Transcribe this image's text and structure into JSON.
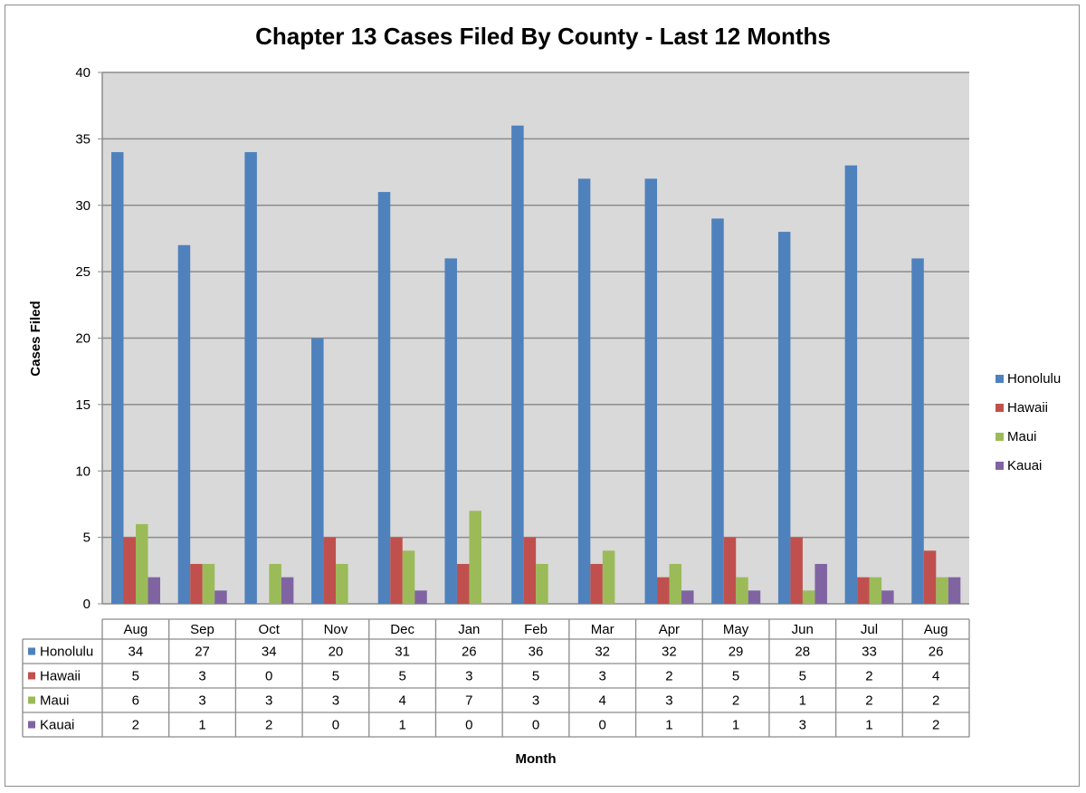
{
  "chart_data": {
    "type": "bar",
    "title": "Chapter 13 Cases Filed By County - Last 12 Months",
    "xlabel": "Month",
    "ylabel": "Cases Filed",
    "ylim": [
      0,
      40
    ],
    "yticks": [
      0,
      5,
      10,
      15,
      20,
      25,
      30,
      35,
      40
    ],
    "grid": true,
    "legend_position": "right",
    "data_table": true,
    "categories": [
      "Aug",
      "Sep",
      "Oct",
      "Nov",
      "Dec",
      "Jan",
      "Feb",
      "Mar",
      "Apr",
      "May",
      "Jun",
      "Jul",
      "Aug"
    ],
    "series": [
      {
        "name": "Honolulu",
        "color": "#4F81BD",
        "values": [
          34,
          27,
          34,
          20,
          31,
          26,
          36,
          32,
          32,
          29,
          28,
          33,
          26
        ]
      },
      {
        "name": "Hawaii",
        "color": "#C0504D",
        "values": [
          5,
          3,
          0,
          5,
          5,
          3,
          5,
          3,
          2,
          5,
          5,
          2,
          4
        ]
      },
      {
        "name": "Maui",
        "color": "#9BBB59",
        "values": [
          6,
          3,
          3,
          3,
          4,
          7,
          3,
          4,
          3,
          2,
          1,
          2,
          2
        ]
      },
      {
        "name": "Kauai",
        "color": "#8064A2",
        "values": [
          2,
          1,
          2,
          0,
          1,
          0,
          0,
          0,
          1,
          1,
          3,
          1,
          2
        ]
      }
    ],
    "plot_background": "#D9D9D9"
  }
}
